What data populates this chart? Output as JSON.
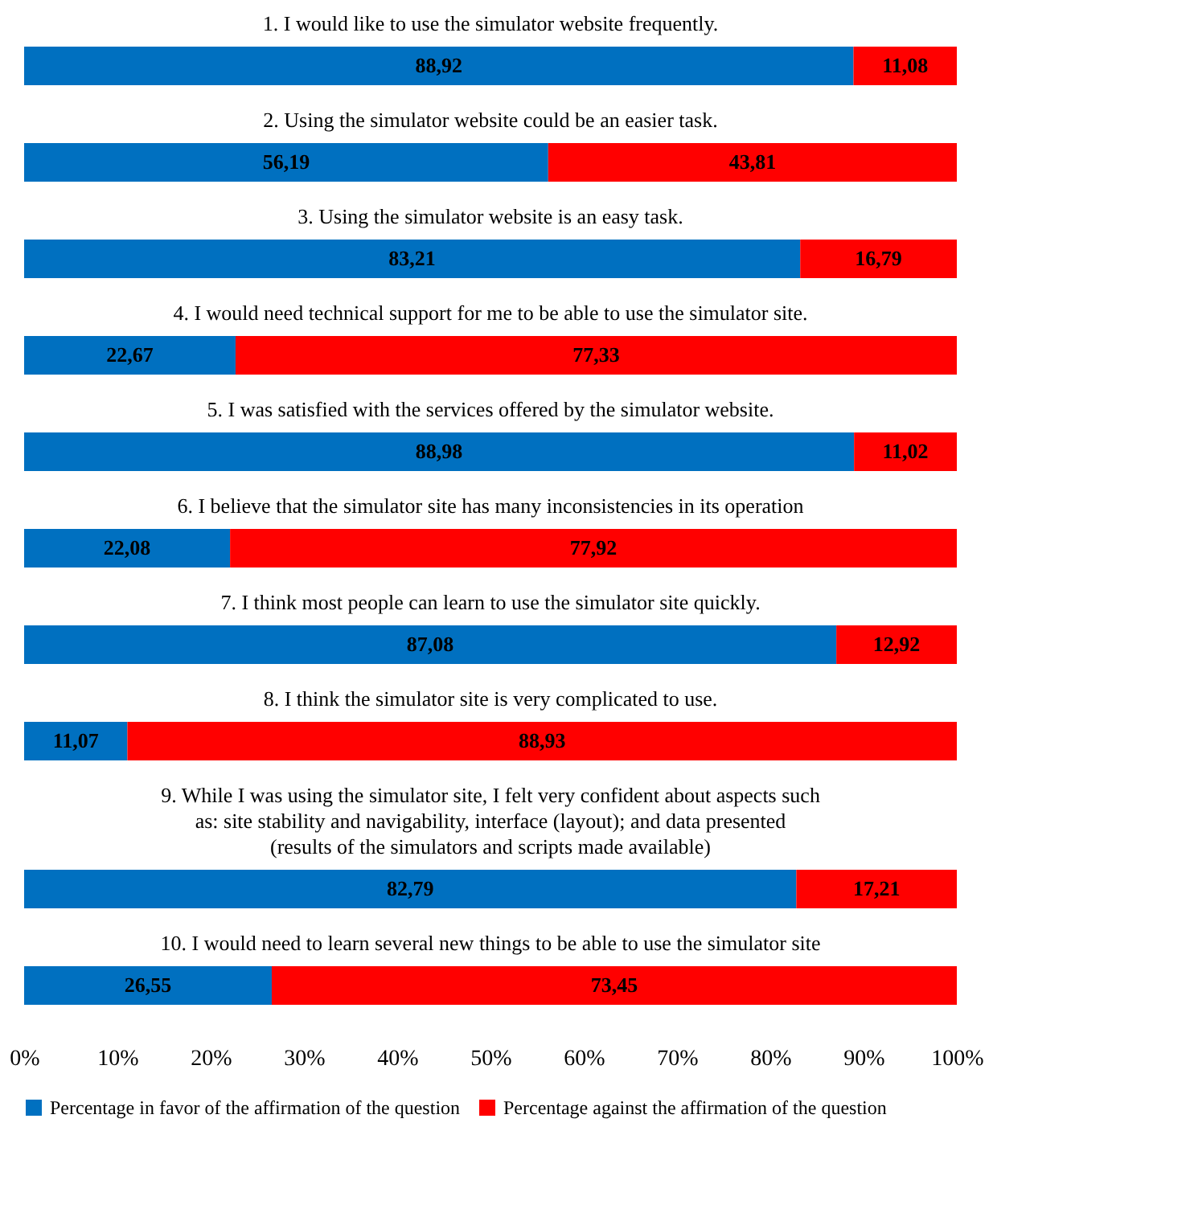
{
  "chart_data": {
    "type": "bar",
    "orientation": "horizontal",
    "stacked": true,
    "categories": [
      "1. I would like to use the simulator website frequently.",
      "2. Using the simulator website could be an easier task.",
      "3. Using the simulator website is an easy task.",
      "4. I would need technical support for me to be able to use the simulator site.",
      "5. I was satisfied with the services offered by the simulator website.",
      "6. I believe that the simulator site has many inconsistencies in its operation",
      "7. I think most people can learn to use the simulator site quickly.",
      "8. I think the simulator site is very complicated to use.",
      "9. While I was using the simulator site, I felt very confident about aspects such as: site stability and navigability, interface (layout); and data presented (results of the simulators and scripts made available)",
      "10. I would need to learn several new things to be able to use the simulator site"
    ],
    "series": [
      {
        "name": "Percentage in favor of the affirmation of the question",
        "color": "#0070c0",
        "values": [
          88.92,
          56.19,
          83.21,
          22.67,
          88.98,
          22.08,
          87.08,
          11.07,
          82.79,
          26.55
        ],
        "value_labels": [
          "88,92",
          "56,19",
          "83,21",
          "22,67",
          "88,98",
          "22,08",
          "87,08",
          "11,07",
          "82,79",
          "26,55"
        ]
      },
      {
        "name": "Percentage against the affirmation of the question",
        "color": "#ff0000",
        "values": [
          11.08,
          43.81,
          16.79,
          77.33,
          11.02,
          77.92,
          12.92,
          88.93,
          17.21,
          73.45
        ],
        "value_labels": [
          "11,08",
          "43,81",
          "16,79",
          "77,33",
          "11,02",
          "77,92",
          "12,92",
          "88,93",
          "17,21",
          "73,45"
        ]
      }
    ],
    "xlim": [
      0,
      100
    ],
    "xticks": [
      {
        "value": 0,
        "label": "0%"
      },
      {
        "value": 10,
        "label": "10%"
      },
      {
        "value": 20,
        "label": "20%"
      },
      {
        "value": 30,
        "label": "30%"
      },
      {
        "value": 40,
        "label": "40%"
      },
      {
        "value": 50,
        "label": "50%"
      },
      {
        "value": 60,
        "label": "60%"
      },
      {
        "value": 70,
        "label": "70%"
      },
      {
        "value": 80,
        "label": "80%"
      },
      {
        "value": 90,
        "label": "90%"
      },
      {
        "value": 100,
        "label": "100%"
      }
    ],
    "tick_labels": "x",
    "grid": false,
    "legend": "bottom"
  }
}
